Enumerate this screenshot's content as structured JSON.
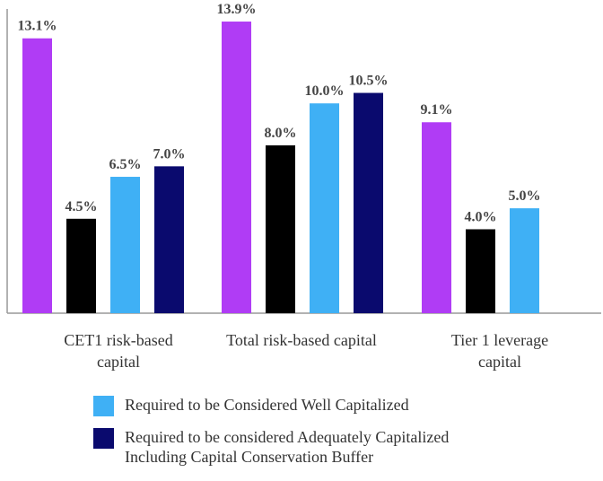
{
  "chart_data": {
    "type": "bar",
    "categories": [
      {
        "line1": "CET1 risk-based",
        "line2": "capital"
      },
      {
        "line1": "Total risk-based capital",
        "line2": ""
      },
      {
        "line1": "Tier 1 leverage",
        "line2": "capital"
      }
    ],
    "series": [
      {
        "name": "",
        "color": "#b03cf5",
        "values": [
          13.1,
          13.9,
          9.1
        ],
        "labels": [
          "13.1%",
          "13.9%",
          "9.1%"
        ]
      },
      {
        "name": "",
        "color": "#000000",
        "values": [
          4.5,
          8.0,
          4.0
        ],
        "labels": [
          "4.5%",
          "8.0%",
          "4.0%"
        ]
      },
      {
        "name": "Required to be Considered Well Capitalized",
        "color": "#3fb0f5",
        "values": [
          6.5,
          10.0,
          5.0
        ],
        "labels": [
          "6.5%",
          "10.0%",
          "5.0%"
        ]
      },
      {
        "name": "Required to be considered Adequately Capitalized Including Capital Conservation Buffer",
        "color": "#0a0a6e",
        "values": [
          7.0,
          10.5,
          null
        ],
        "labels": [
          "7.0%",
          "10.5%",
          ""
        ]
      }
    ],
    "ylim": [
      0,
      14.5
    ],
    "title": "",
    "xlabel": "",
    "ylabel": ""
  },
  "legend": [
    {
      "label": "Required to be Considered Well Capitalized",
      "color": "#3fb0f5"
    },
    {
      "label": "Required to be considered Adequately Capitalized\nIncluding Capital Conservation Buffer",
      "color": "#0a0a6e"
    }
  ]
}
